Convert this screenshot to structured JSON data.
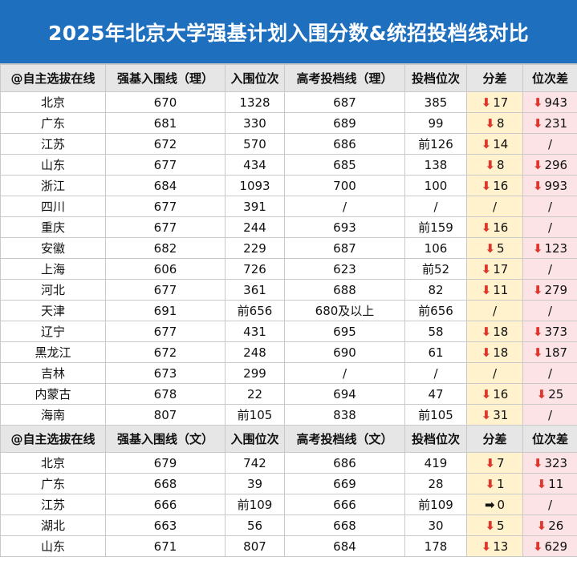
{
  "title": "2025年北京大学强基计划入围分数&统招投档线对比",
  "colors": {
    "title_bg": "#1f6fbf",
    "header_bg": "#e7e6e6",
    "diff_bg": "#fff2cc",
    "rankdiff_bg": "#fce4e6",
    "arrow_down": "#e0352b"
  },
  "icons": {
    "down": "red-down-arrow-icon",
    "equal": "right-arrow-icon"
  },
  "sections": [
    {
      "headers": [
        "@自主选拔在线",
        "强基入围线（理）",
        "入围位次",
        "高考投档线（理）",
        "投档位次",
        "分差",
        "位次差"
      ],
      "rows": [
        {
          "province": "北京",
          "qiangji_line": "670",
          "qiangji_rank": "1328",
          "gaokao_line": "687",
          "gaokao_rank": "385",
          "score_diff": {
            "dir": "down",
            "value": "17"
          },
          "rank_diff": {
            "dir": "down",
            "value": "943"
          }
        },
        {
          "province": "广东",
          "qiangji_line": "681",
          "qiangji_rank": "330",
          "gaokao_line": "689",
          "gaokao_rank": "99",
          "score_diff": {
            "dir": "down",
            "value": "8"
          },
          "rank_diff": {
            "dir": "down",
            "value": "231"
          }
        },
        {
          "province": "江苏",
          "qiangji_line": "672",
          "qiangji_rank": "570",
          "gaokao_line": "686",
          "gaokao_rank": "前126",
          "score_diff": {
            "dir": "down",
            "value": "14"
          },
          "rank_diff": {
            "dir": "none",
            "value": "/"
          }
        },
        {
          "province": "山东",
          "qiangji_line": "677",
          "qiangji_rank": "434",
          "gaokao_line": "685",
          "gaokao_rank": "138",
          "score_diff": {
            "dir": "down",
            "value": "8"
          },
          "rank_diff": {
            "dir": "down",
            "value": "296"
          }
        },
        {
          "province": "浙江",
          "qiangji_line": "684",
          "qiangji_rank": "1093",
          "gaokao_line": "700",
          "gaokao_rank": "100",
          "score_diff": {
            "dir": "down",
            "value": "16"
          },
          "rank_diff": {
            "dir": "down",
            "value": "993"
          }
        },
        {
          "province": "四川",
          "qiangji_line": "677",
          "qiangji_rank": "391",
          "gaokao_line": "/",
          "gaokao_rank": "/",
          "score_diff": {
            "dir": "none",
            "value": "/"
          },
          "rank_diff": {
            "dir": "none",
            "value": "/"
          }
        },
        {
          "province": "重庆",
          "qiangji_line": "677",
          "qiangji_rank": "244",
          "gaokao_line": "693",
          "gaokao_rank": "前159",
          "score_diff": {
            "dir": "down",
            "value": "16"
          },
          "rank_diff": {
            "dir": "none",
            "value": "/"
          }
        },
        {
          "province": "安徽",
          "qiangji_line": "682",
          "qiangji_rank": "229",
          "gaokao_line": "687",
          "gaokao_rank": "106",
          "score_diff": {
            "dir": "down",
            "value": "5"
          },
          "rank_diff": {
            "dir": "down",
            "value": "123"
          }
        },
        {
          "province": "上海",
          "qiangji_line": "606",
          "qiangji_rank": "726",
          "gaokao_line": "623",
          "gaokao_rank": "前52",
          "score_diff": {
            "dir": "down",
            "value": "17"
          },
          "rank_diff": {
            "dir": "none",
            "value": "/"
          }
        },
        {
          "province": "河北",
          "qiangji_line": "677",
          "qiangji_rank": "361",
          "gaokao_line": "688",
          "gaokao_rank": "82",
          "score_diff": {
            "dir": "down",
            "value": "11"
          },
          "rank_diff": {
            "dir": "down",
            "value": "279"
          }
        },
        {
          "province": "天津",
          "qiangji_line": "691",
          "qiangji_rank": "前656",
          "gaokao_line": "680及以上",
          "gaokao_rank": "前656",
          "score_diff": {
            "dir": "none",
            "value": "/"
          },
          "rank_diff": {
            "dir": "none",
            "value": "/"
          }
        },
        {
          "province": "辽宁",
          "qiangji_line": "677",
          "qiangji_rank": "431",
          "gaokao_line": "695",
          "gaokao_rank": "58",
          "score_diff": {
            "dir": "down",
            "value": "18"
          },
          "rank_diff": {
            "dir": "down",
            "value": "373"
          }
        },
        {
          "province": "黑龙江",
          "qiangji_line": "672",
          "qiangji_rank": "248",
          "gaokao_line": "690",
          "gaokao_rank": "61",
          "score_diff": {
            "dir": "down",
            "value": "18"
          },
          "rank_diff": {
            "dir": "down",
            "value": "187"
          }
        },
        {
          "province": "吉林",
          "qiangji_line": "673",
          "qiangji_rank": "299",
          "gaokao_line": "/",
          "gaokao_rank": "/",
          "score_diff": {
            "dir": "none",
            "value": "/"
          },
          "rank_diff": {
            "dir": "none",
            "value": "/"
          }
        },
        {
          "province": "内蒙古",
          "qiangji_line": "678",
          "qiangji_rank": "22",
          "gaokao_line": "694",
          "gaokao_rank": "47",
          "score_diff": {
            "dir": "down",
            "value": "16"
          },
          "rank_diff": {
            "dir": "down",
            "value": "25"
          }
        },
        {
          "province": "海南",
          "qiangji_line": "807",
          "qiangji_rank": "前105",
          "gaokao_line": "838",
          "gaokao_rank": "前105",
          "score_diff": {
            "dir": "down",
            "value": "31"
          },
          "rank_diff": {
            "dir": "none",
            "value": "/"
          }
        }
      ]
    },
    {
      "headers": [
        "@自主选拔在线",
        "强基入围线（文）",
        "入围位次",
        "高考投档线（文）",
        "投档位次",
        "分差",
        "位次差"
      ],
      "rows": [
        {
          "province": "北京",
          "qiangji_line": "679",
          "qiangji_rank": "742",
          "gaokao_line": "686",
          "gaokao_rank": "419",
          "score_diff": {
            "dir": "down",
            "value": "7"
          },
          "rank_diff": {
            "dir": "down",
            "value": "323"
          }
        },
        {
          "province": "广东",
          "qiangji_line": "668",
          "qiangji_rank": "39",
          "gaokao_line": "669",
          "gaokao_rank": "28",
          "score_diff": {
            "dir": "down",
            "value": "1"
          },
          "rank_diff": {
            "dir": "down",
            "value": "11"
          }
        },
        {
          "province": "江苏",
          "qiangji_line": "666",
          "qiangji_rank": "前109",
          "gaokao_line": "666",
          "gaokao_rank": "前109",
          "score_diff": {
            "dir": "equal",
            "value": "0"
          },
          "rank_diff": {
            "dir": "none",
            "value": "/"
          }
        },
        {
          "province": "湖北",
          "qiangji_line": "663",
          "qiangji_rank": "56",
          "gaokao_line": "668",
          "gaokao_rank": "30",
          "score_diff": {
            "dir": "down",
            "value": "5"
          },
          "rank_diff": {
            "dir": "down",
            "value": "26"
          }
        },
        {
          "province": "山东",
          "qiangji_line": "671",
          "qiangji_rank": "807",
          "gaokao_line": "684",
          "gaokao_rank": "178",
          "score_diff": {
            "dir": "down",
            "value": "13"
          },
          "rank_diff": {
            "dir": "down",
            "value": "629"
          }
        }
      ]
    }
  ]
}
